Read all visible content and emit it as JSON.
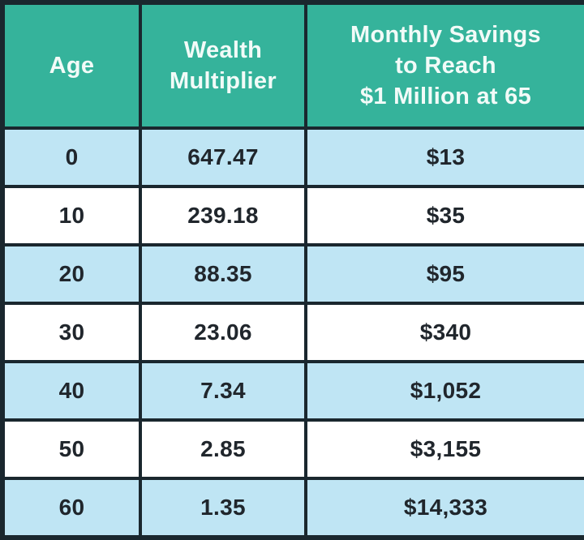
{
  "chart_data": {
    "type": "table",
    "title": "",
    "columns": [
      "Age",
      "Wealth Multiplier",
      "Monthly Savings to Reach $1 Million at 65"
    ],
    "rows": [
      [
        0,
        647.47,
        "$13"
      ],
      [
        10,
        239.18,
        "$35"
      ],
      [
        20,
        88.35,
        "$95"
      ],
      [
        30,
        23.06,
        "$340"
      ],
      [
        40,
        7.34,
        "$1,052"
      ],
      [
        50,
        2.85,
        "$3,155"
      ],
      [
        60,
        1.35,
        "$14,333"
      ]
    ]
  },
  "table": {
    "header": {
      "age": "Age",
      "multiplier": "Wealth\nMultiplier",
      "savings": "Monthly Savings\nto Reach\n$1 Million at 65"
    },
    "rows": [
      {
        "age": "0",
        "multiplier": "647.47",
        "savings": "$13"
      },
      {
        "age": "10",
        "multiplier": "239.18",
        "savings": "$35"
      },
      {
        "age": "20",
        "multiplier": "88.35",
        "savings": "$95"
      },
      {
        "age": "30",
        "multiplier": "23.06",
        "savings": "$340"
      },
      {
        "age": "40",
        "multiplier": "7.34",
        "savings": "$1,052"
      },
      {
        "age": "50",
        "multiplier": "2.85",
        "savings": "$3,155"
      },
      {
        "age": "60",
        "multiplier": "1.35",
        "savings": "$14,333"
      }
    ]
  },
  "colors": {
    "header_bg": "#35b39b",
    "row_alt_bg": "#bfe5f4",
    "row_bg": "#ffffff",
    "border": "#1a272e",
    "header_text": "#f2fbf8",
    "cell_text": "#20262c"
  }
}
